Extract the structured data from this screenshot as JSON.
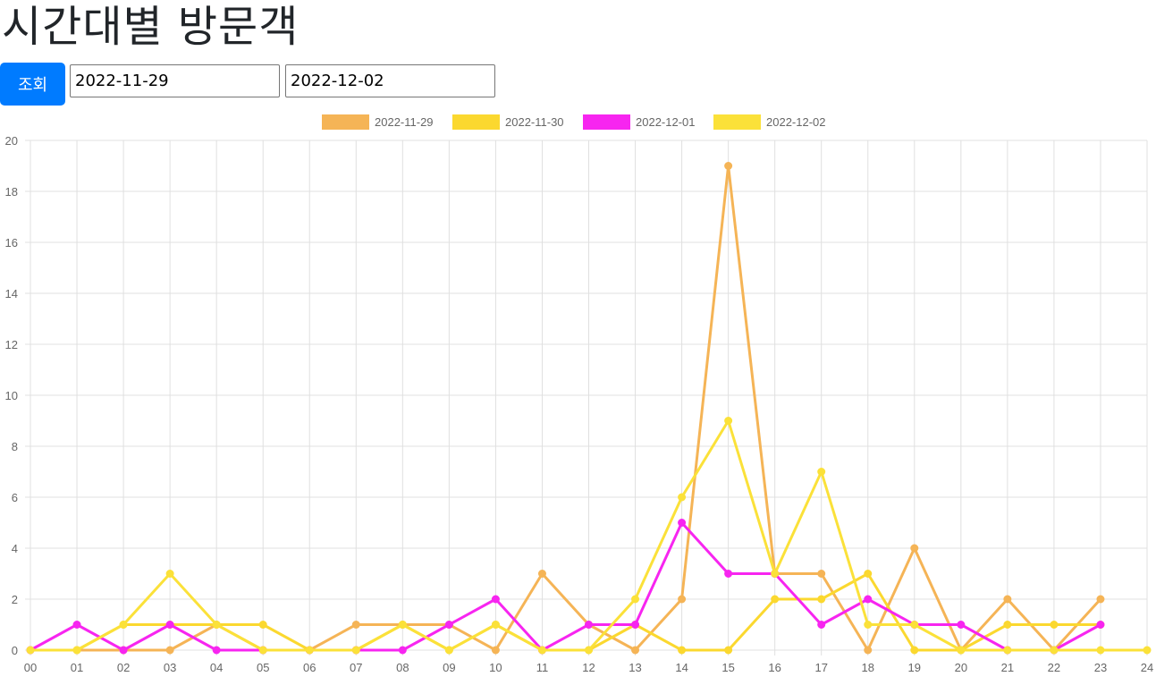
{
  "page": {
    "title": "시간대별 방문객"
  },
  "toolbar": {
    "query_label": "조회",
    "start_date": "2022-11-29",
    "end_date": "2022-12-02"
  },
  "chart_data": {
    "type": "line",
    "title": "",
    "xlabel": "",
    "ylabel": "",
    "categories": [
      "00",
      "01",
      "02",
      "03",
      "04",
      "05",
      "06",
      "07",
      "08",
      "09",
      "10",
      "11",
      "12",
      "13",
      "14",
      "15",
      "16",
      "17",
      "18",
      "19",
      "20",
      "21",
      "22",
      "23",
      "24"
    ],
    "ylim": [
      0,
      20
    ],
    "yticks": [
      0,
      2,
      4,
      6,
      8,
      10,
      12,
      14,
      16,
      18,
      20
    ],
    "grid": true,
    "legend_position": "top-center",
    "series": [
      {
        "name": "2022-11-29",
        "color": "#f5b456",
        "values": [
          0,
          0,
          0,
          0,
          1,
          0,
          0,
          1,
          1,
          1,
          0,
          3,
          1,
          0,
          2,
          19,
          3,
          3,
          0,
          4,
          0,
          2,
          0,
          2,
          null
        ]
      },
      {
        "name": "2022-11-30",
        "color": "#fbd82f",
        "values": [
          0,
          0,
          1,
          1,
          1,
          1,
          0,
          0,
          1,
          0,
          1,
          0,
          0,
          1,
          0,
          0,
          2,
          2,
          3,
          0,
          0,
          1,
          1,
          1,
          null
        ]
      },
      {
        "name": "2022-12-01",
        "color": "#f725f0",
        "values": [
          0,
          1,
          0,
          1,
          0,
          0,
          0,
          0,
          0,
          1,
          2,
          0,
          1,
          1,
          5,
          3,
          3,
          1,
          2,
          1,
          1,
          0,
          0,
          1,
          null
        ]
      },
      {
        "name": "2022-12-02",
        "color": "#fbe139",
        "values": [
          0,
          0,
          1,
          3,
          1,
          0,
          0,
          0,
          1,
          0,
          1,
          0,
          0,
          2,
          6,
          9,
          3,
          7,
          1,
          1,
          0,
          0,
          0,
          0,
          0
        ]
      }
    ]
  }
}
